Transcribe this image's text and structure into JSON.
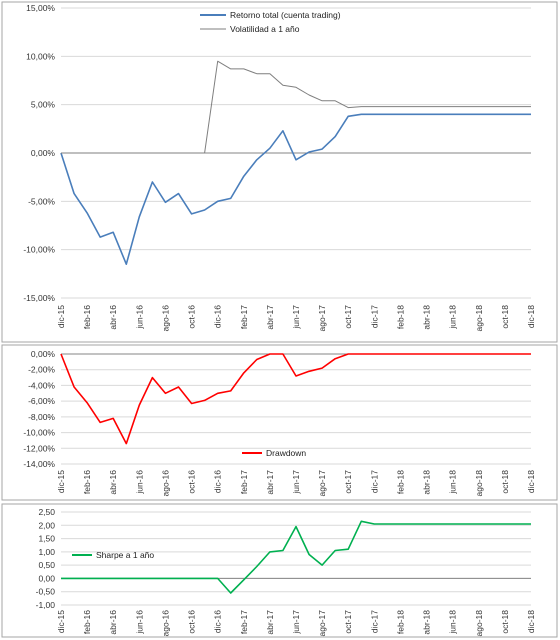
{
  "chart_data": [
    {
      "type": "line",
      "x": [
        "dic-15",
        "ene-16",
        "feb-16",
        "mar-16",
        "abr-16",
        "may-16",
        "jun-16",
        "jul-16",
        "ago-16",
        "sep-16",
        "oct-16",
        "nov-16",
        "dic-16",
        "ene-17",
        "feb-17",
        "mar-17",
        "abr-17",
        "may-17",
        "jun-17",
        "jul-17",
        "ago-17",
        "sep-17",
        "oct-17",
        "nov-17",
        "dic-17",
        "ene-18",
        "feb-18",
        "mar-18",
        "abr-18",
        "may-18",
        "jun-18",
        "jul-18",
        "ago-18",
        "sep-18",
        "oct-18",
        "nov-18",
        "dic-18"
      ],
      "xtick_labels": [
        "dic-15",
        "feb-16",
        "abr-16",
        "jun-16",
        "ago-16",
        "oct-16",
        "dic-16",
        "feb-17",
        "abr-17",
        "jun-17",
        "ago-17",
        "oct-17",
        "dic-17",
        "feb-18",
        "abr-18",
        "jun-18",
        "ago-18",
        "oct-18",
        "dic-18"
      ],
      "ytick_labels": [
        "15,00%",
        "10,00%",
        "5,00%",
        "0,00%",
        "-5,00%",
        "-10,00%",
        "-15,00%"
      ],
      "ylim": [
        -15,
        15
      ],
      "series": [
        {
          "name": "Retorno total (cuenta trading)",
          "color": "#4a7ebb",
          "values": [
            0,
            -4.2,
            -6.2,
            -8.7,
            -8.2,
            -11.5,
            -6.6,
            -3.0,
            -5.1,
            -4.2,
            -6.3,
            -5.9,
            -5.0,
            -4.7,
            -2.4,
            -0.7,
            0.5,
            2.3,
            -0.7,
            0.1,
            0.4,
            1.7,
            3.8,
            4.0,
            4.0,
            4.0,
            4.0,
            4.0,
            4.0,
            4.0,
            4.0,
            4.0,
            4.0,
            4.0,
            4.0,
            4.0,
            4.0
          ]
        },
        {
          "name": "Volatilidad a 1 año",
          "color": "#7f7f7f",
          "values": [
            0,
            0,
            0,
            0,
            0,
            0,
            0,
            0,
            0,
            0,
            0,
            0,
            9.5,
            8.7,
            8.7,
            8.2,
            8.2,
            7.0,
            6.8,
            6.0,
            5.4,
            5.4,
            4.7,
            4.8,
            4.8,
            4.8,
            4.8,
            4.8,
            4.8,
            4.8,
            4.8,
            4.8,
            4.8,
            4.8,
            4.8,
            4.8,
            4.8
          ]
        }
      ],
      "legend": "top"
    },
    {
      "type": "line",
      "x": [
        "dic-15",
        "ene-16",
        "feb-16",
        "mar-16",
        "abr-16",
        "may-16",
        "jun-16",
        "jul-16",
        "ago-16",
        "sep-16",
        "oct-16",
        "nov-16",
        "dic-16",
        "ene-17",
        "feb-17",
        "mar-17",
        "abr-17",
        "may-17",
        "jun-17",
        "jul-17",
        "ago-17",
        "sep-17",
        "oct-17",
        "nov-17",
        "dic-17",
        "ene-18",
        "feb-18",
        "mar-18",
        "abr-18",
        "may-18",
        "jun-18",
        "jul-18",
        "ago-18",
        "sep-18",
        "oct-18",
        "nov-18",
        "dic-18"
      ],
      "xtick_labels": [
        "dic-15",
        "feb-16",
        "abr-16",
        "jun-16",
        "ago-16",
        "oct-16",
        "dic-16",
        "feb-17",
        "abr-17",
        "jun-17",
        "ago-17",
        "oct-17",
        "dic-17",
        "feb-18",
        "abr-18",
        "jun-18",
        "ago-18",
        "oct-18",
        "dic-18"
      ],
      "ytick_labels": [
        "0,00%",
        "-2,00%",
        "-4,00%",
        "-6,00%",
        "-8,00%",
        "-10,00%",
        "-12,00%",
        "-14,00%"
      ],
      "ylim": [
        -14,
        0
      ],
      "series": [
        {
          "name": "Drawdown",
          "color": "#ff0000",
          "values": [
            0,
            -4.2,
            -6.2,
            -8.7,
            -8.2,
            -11.4,
            -6.5,
            -3.0,
            -5.0,
            -4.2,
            -6.3,
            -5.9,
            -5.0,
            -4.7,
            -2.4,
            -0.7,
            0,
            0,
            -2.8,
            -2.2,
            -1.8,
            -0.6,
            0,
            0,
            0,
            0,
            0,
            0,
            0,
            0,
            0,
            0,
            0,
            0,
            0,
            0,
            0
          ]
        }
      ],
      "legend": "bottom-center"
    },
    {
      "type": "line",
      "x": [
        "dic-15",
        "ene-16",
        "feb-16",
        "mar-16",
        "abr-16",
        "may-16",
        "jun-16",
        "jul-16",
        "ago-16",
        "sep-16",
        "oct-16",
        "nov-16",
        "dic-16",
        "ene-17",
        "feb-17",
        "mar-17",
        "abr-17",
        "may-17",
        "jun-17",
        "jul-17",
        "ago-17",
        "sep-17",
        "oct-17",
        "nov-17",
        "dic-17",
        "ene-18",
        "feb-18",
        "mar-18",
        "abr-18",
        "may-18",
        "jun-18",
        "jul-18",
        "ago-18",
        "sep-18",
        "oct-18",
        "nov-18",
        "dic-18"
      ],
      "xtick_labels": [
        "dic-15",
        "feb-16",
        "abr-16",
        "jun-16",
        "ago-16",
        "oct-16",
        "dic-16",
        "feb-17",
        "abr-17",
        "jun-17",
        "ago-17",
        "oct-17",
        "dic-17",
        "feb-18",
        "abr-18",
        "jun-18",
        "ago-18",
        "oct-18",
        "dic-18"
      ],
      "ytick_labels": [
        "2,50",
        "2,00",
        "1,50",
        "1,00",
        "0,50",
        "0,00",
        "-0,50",
        "-1,00"
      ],
      "ylim": [
        -1,
        2.5
      ],
      "series": [
        {
          "name": "Sharpe a 1 año",
          "color": "#00b050",
          "values": [
            0,
            0,
            0,
            0,
            0,
            0,
            0,
            0,
            0,
            0,
            0,
            0,
            0,
            -0.55,
            -0.05,
            0.45,
            1.0,
            1.05,
            1.95,
            0.9,
            0.5,
            1.05,
            1.1,
            2.15,
            2.05,
            2.05,
            2.05,
            2.05,
            2.05,
            2.05,
            2.05,
            2.05,
            2.05,
            2.05,
            2.05,
            2.05,
            2.05
          ]
        }
      ],
      "legend": "middle-left"
    }
  ]
}
